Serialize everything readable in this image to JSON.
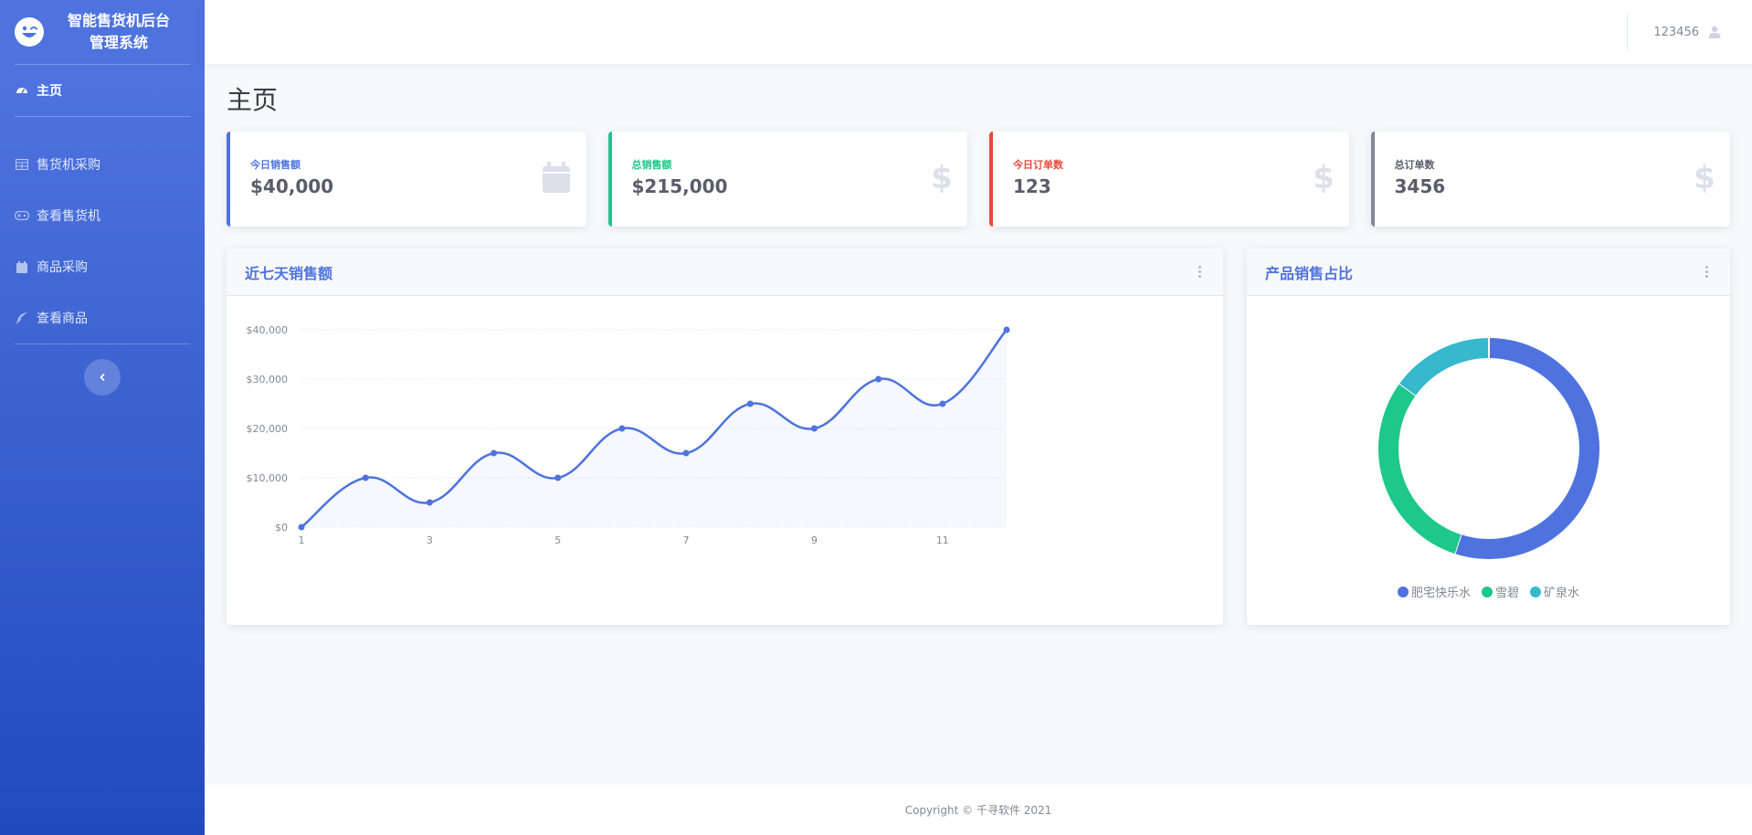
{
  "brand": {
    "title": "智能售货机后台管理系统",
    "line1": "智能售货机后台",
    "line2": "管理系统"
  },
  "nav": {
    "home": "主页",
    "items": [
      {
        "label": "售货机采购",
        "icon": "table-icon"
      },
      {
        "label": "查看售货机",
        "icon": "gamepad-icon"
      },
      {
        "label": "商品采购",
        "icon": "calendar-icon"
      },
      {
        "label": "查看商品",
        "icon": "feather-icon"
      }
    ]
  },
  "topbar": {
    "user": "123456"
  },
  "page": {
    "title": "主页"
  },
  "cards": [
    {
      "label": "今日销售额",
      "value": "$40,000",
      "color": "#4e73df",
      "icon": "calendar-icon"
    },
    {
      "label": "总销售额",
      "value": "$215,000",
      "color": "#1cc88a",
      "icon": "dollar-icon"
    },
    {
      "label": "今日订单数",
      "value": "123",
      "color": "#e74a3b",
      "icon": "dollar-icon"
    },
    {
      "label": "总订单数",
      "value": "3456",
      "color": "#858796",
      "icon": "dollar-icon"
    }
  ],
  "line_panel": {
    "title": "近七天销售额"
  },
  "pie_panel": {
    "title": "产品销售占比"
  },
  "footer": {
    "text": "Copyright © 千寻软件 2021"
  },
  "chart_data": [
    {
      "type": "area",
      "title": "近七天销售额",
      "x": [
        1,
        2,
        3,
        4,
        5,
        6,
        7,
        8,
        9,
        10,
        11,
        12
      ],
      "xticks": [
        "1",
        "3",
        "5",
        "7",
        "9",
        "11"
      ],
      "yticks": [
        "$0",
        "$10,000",
        "$20,000",
        "$30,000",
        "$40,000"
      ],
      "ylim": [
        0,
        40000
      ],
      "series": [
        {
          "values": [
            0,
            10000,
            5000,
            15000,
            10000,
            20000,
            15000,
            25000,
            20000,
            30000,
            25000,
            40000
          ],
          "color": "#4e73df"
        }
      ],
      "grid": true
    },
    {
      "type": "pie",
      "title": "产品销售占比",
      "donut": true,
      "labels": [
        "肥宅快乐水",
        "雪碧",
        "矿泉水"
      ],
      "values": [
        55,
        30,
        15
      ],
      "colors": [
        "#4e73df",
        "#1cc88a",
        "#36b9cc"
      ],
      "legend": "bottom"
    }
  ]
}
